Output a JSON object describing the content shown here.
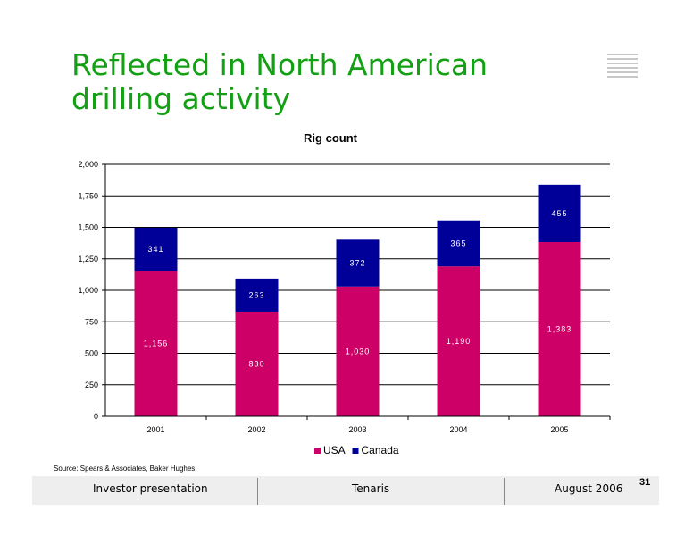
{
  "slide": {
    "title_line1": "Reflected in North American",
    "title_line2": "drilling activity",
    "source": "Source: Spears & Associates, Baker Hughes",
    "page_number": "31"
  },
  "footer": {
    "left": "Investor  presentation",
    "center": "Tenaris",
    "right": "August 2006"
  },
  "colors": {
    "title": "#14a014",
    "usa": "#cc0066",
    "canada": "#000099"
  },
  "chart_data": {
    "type": "bar",
    "stacked": true,
    "title": "Rig count",
    "categories": [
      "2001",
      "2002",
      "2003",
      "2004",
      "2005"
    ],
    "series": [
      {
        "name": "USA",
        "values": [
          1156,
          830,
          1030,
          1190,
          1383
        ],
        "labels": [
          "1,156",
          "830",
          "1,030",
          "1,190",
          "1,383"
        ]
      },
      {
        "name": "Canada",
        "values": [
          341,
          263,
          372,
          365,
          455
        ],
        "labels": [
          "341",
          "263",
          "372",
          "365",
          "455"
        ]
      }
    ],
    "ylim": [
      0,
      2000
    ],
    "yticks": [
      0,
      250,
      500,
      750,
      1000,
      1250,
      1500,
      1750,
      2000
    ],
    "ytick_labels": [
      "0",
      "250",
      "500",
      "750",
      "1,000",
      "1,250",
      "1,500",
      "1,750",
      "2,000"
    ],
    "grid": true,
    "legend_position": "bottom"
  }
}
